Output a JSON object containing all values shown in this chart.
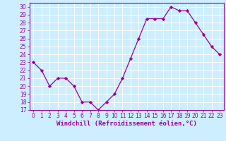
{
  "x": [
    0,
    1,
    2,
    3,
    4,
    5,
    6,
    7,
    8,
    9,
    10,
    11,
    12,
    13,
    14,
    15,
    16,
    17,
    18,
    19,
    20,
    21,
    22,
    23
  ],
  "y": [
    23,
    22,
    20,
    21,
    21,
    20,
    18,
    18,
    17,
    18,
    19,
    21,
    23.5,
    26,
    28.5,
    28.5,
    28.5,
    30,
    29.5,
    29.5,
    28,
    26.5,
    25,
    24
  ],
  "line_color": "#990099",
  "marker": "D",
  "marker_size": 2.2,
  "bg_color": "#cceeff",
  "xlabel": "Windchill (Refroidissement éolien,°C)",
  "xlabel_color": "#990099",
  "ylim": [
    17,
    30.5
  ],
  "xlim": [
    -0.5,
    23.5
  ],
  "yticks": [
    17,
    18,
    19,
    20,
    21,
    22,
    23,
    24,
    25,
    26,
    27,
    28,
    29,
    30
  ],
  "xticks": [
    0,
    1,
    2,
    3,
    4,
    5,
    6,
    7,
    8,
    9,
    10,
    11,
    12,
    13,
    14,
    15,
    16,
    17,
    18,
    19,
    20,
    21,
    22,
    23
  ],
  "grid_color": "#ffffff",
  "tick_color": "#990099",
  "axis_color": "#990099",
  "font_size_xlabel": 6.5,
  "font_size_ticks": 5.5
}
